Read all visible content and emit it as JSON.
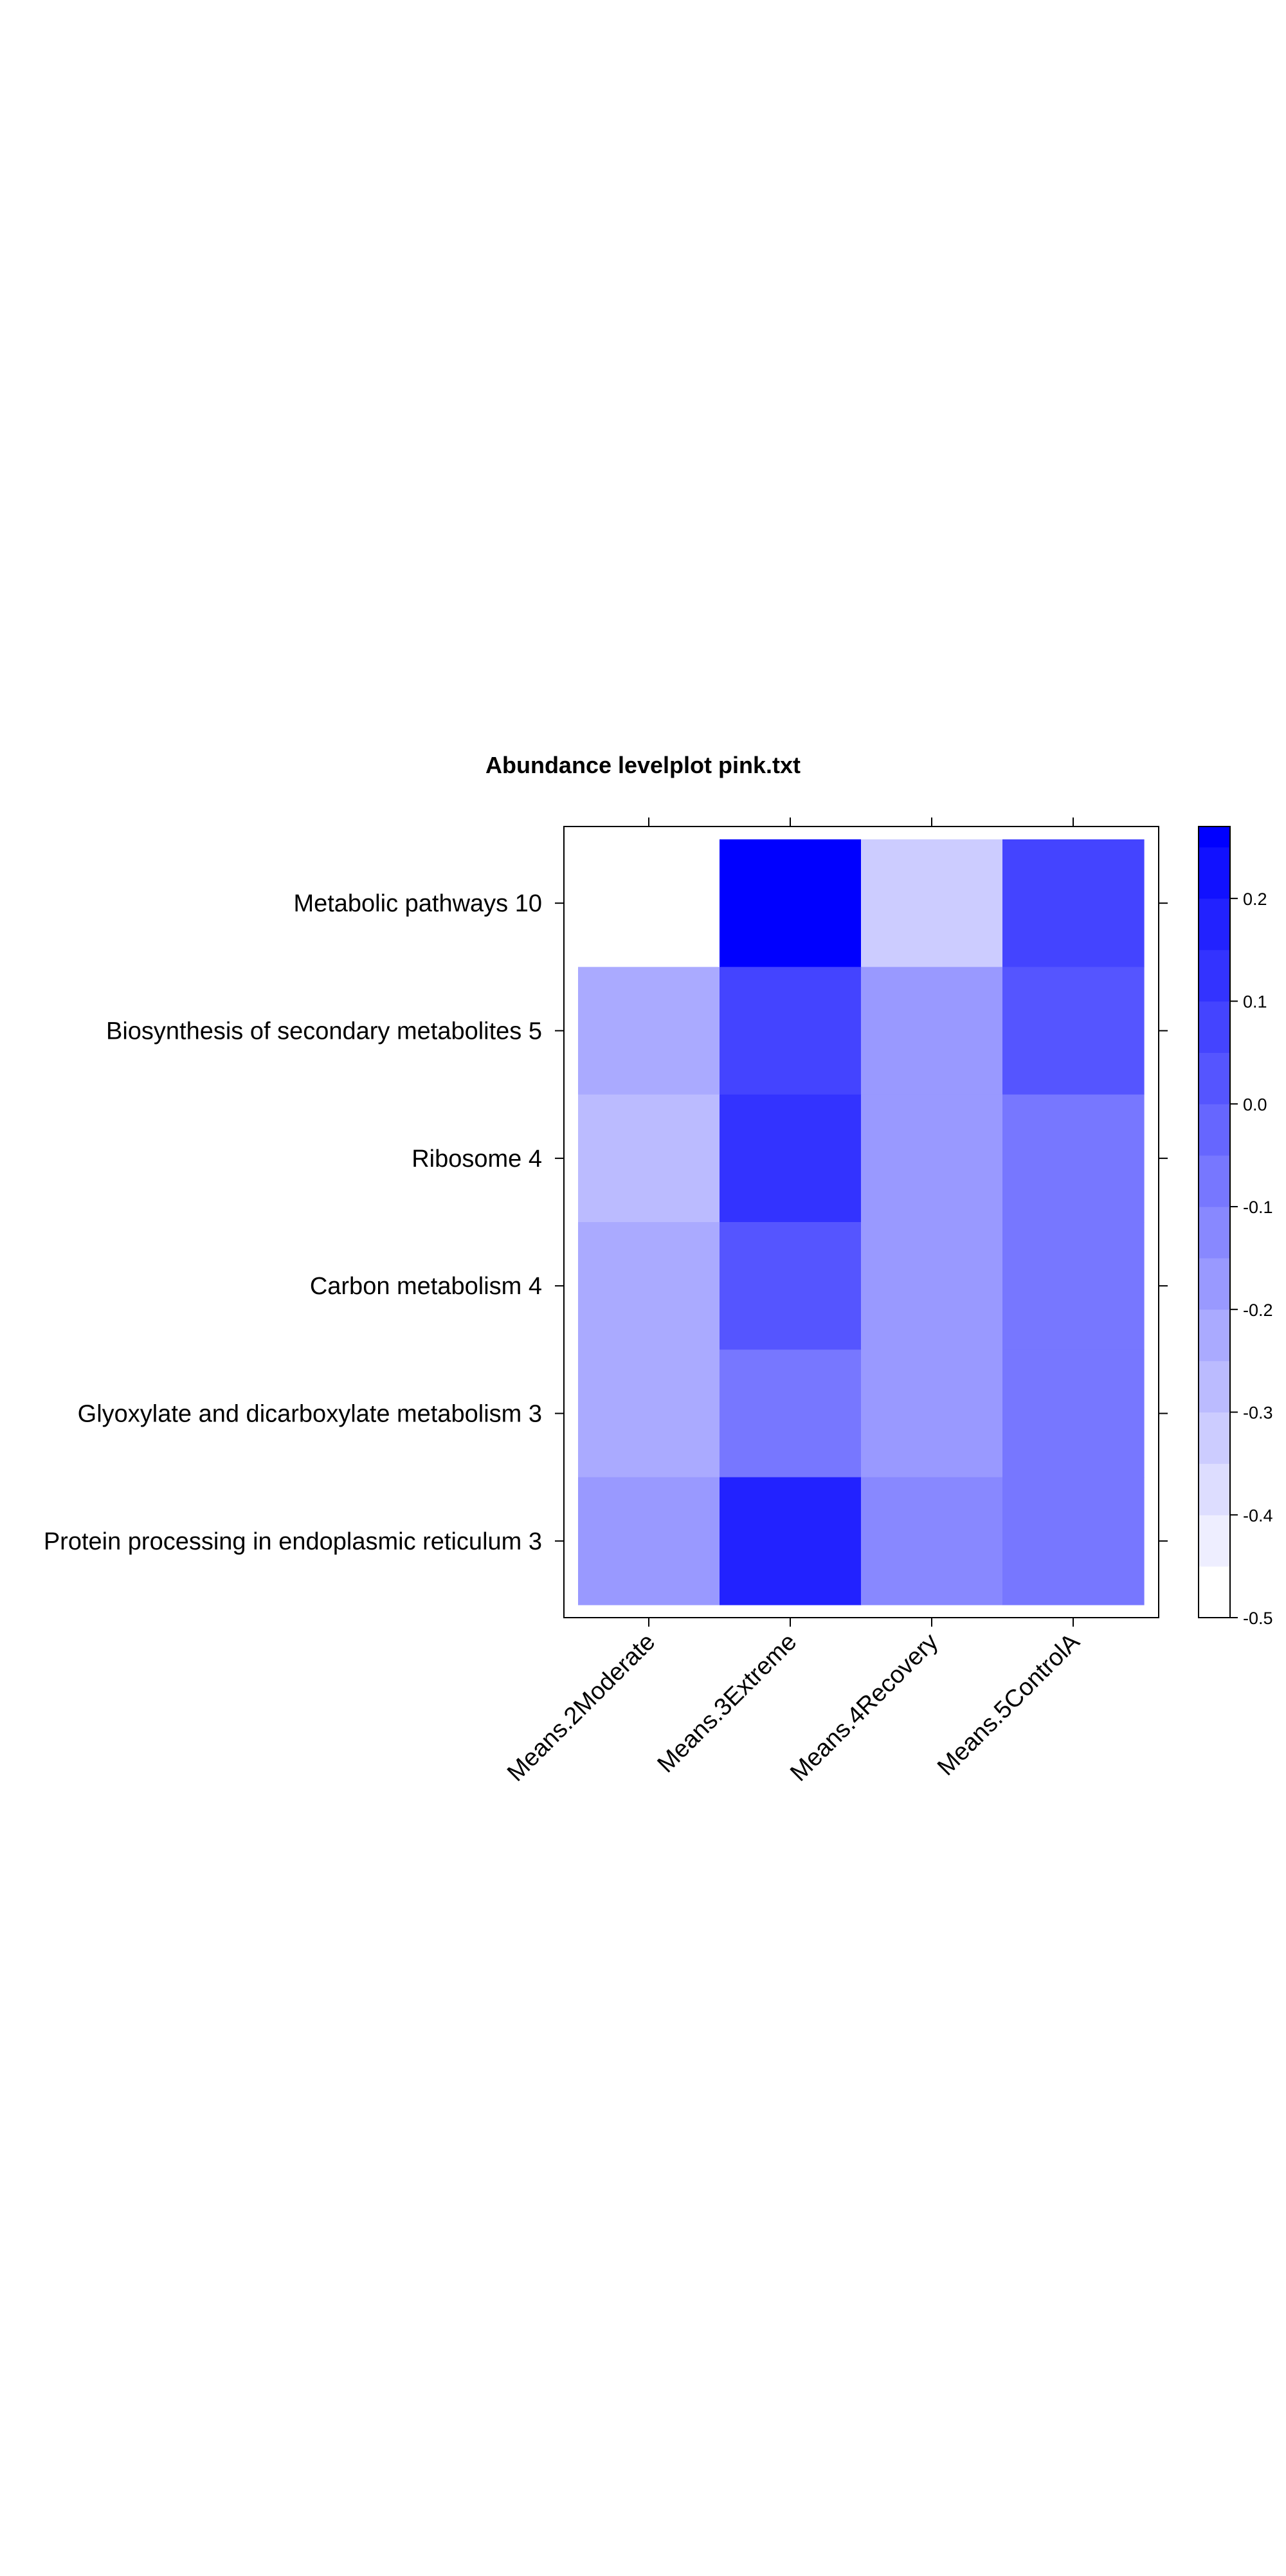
{
  "chart_data": {
    "type": "heatmap",
    "title": "Abundance levelplot pink.txt",
    "x_categories": [
      "Means.2Moderate",
      "Means.3Extreme",
      "Means.4Recovery",
      "Means.5ControlA"
    ],
    "y_categories": [
      "Metabolic pathways 10",
      "Biosynthesis of secondary metabolites 5",
      "Ribosome 4",
      "Carbon metabolism 4",
      "Glyoxylate and dicarboxylate metabolism 3",
      "Protein processing in endoplasmic reticulum 3"
    ],
    "values": [
      [
        -0.5,
        0.26,
        -0.33,
        0.07
      ],
      [
        -0.22,
        0.07,
        -0.18,
        0.05
      ],
      [
        -0.27,
        0.13,
        -0.18,
        -0.08
      ],
      [
        -0.22,
        0.02,
        -0.18,
        -0.08
      ],
      [
        -0.22,
        -0.07,
        -0.18,
        -0.08
      ],
      [
        -0.18,
        0.18,
        -0.12,
        -0.08
      ]
    ],
    "colorbar": {
      "min": -0.5,
      "max": 0.27,
      "breaks": [
        -0.5,
        -0.45,
        -0.4,
        -0.35,
        -0.3,
        -0.25,
        -0.2,
        -0.15,
        -0.1,
        -0.05,
        0.0,
        0.05,
        0.1,
        0.15,
        0.2,
        0.25,
        0.27
      ],
      "tick_labels": [
        "0.2",
        "0.1",
        "0.0",
        "-0.1",
        "-0.2",
        "-0.3",
        "-0.4",
        "-0.5"
      ],
      "tick_values": [
        0.2,
        0.1,
        0.0,
        -0.1,
        -0.2,
        -0.3,
        -0.4,
        -0.5
      ],
      "low_color": "#ffffff",
      "high_color": "#0000ff"
    },
    "grid": false,
    "legend_position": "right"
  }
}
